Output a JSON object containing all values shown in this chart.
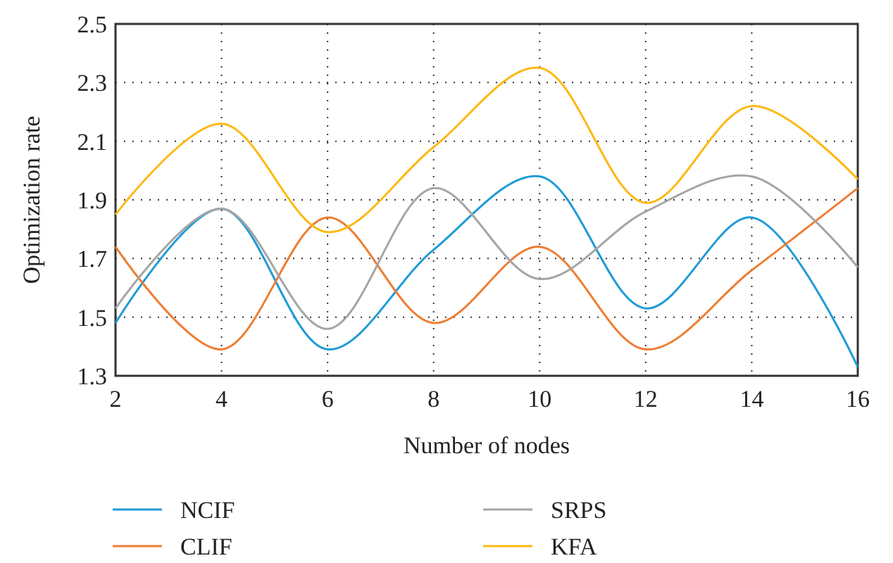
{
  "chart_data": {
    "type": "line",
    "xlabel": "Number of nodes",
    "ylabel": "Optimization rate",
    "x": [
      2,
      4,
      6,
      8,
      10,
      12,
      14,
      16
    ],
    "xlim": [
      2,
      16
    ],
    "xticks": [
      2,
      4,
      6,
      8,
      10,
      12,
      14,
      16
    ],
    "ylim": [
      1.3,
      2.5
    ],
    "yticks": [
      {
        "value": 1.3,
        "label": "1.3"
      },
      {
        "value": 1.5,
        "label": "1.5"
      },
      {
        "value": 1.7,
        "label": "1.7"
      },
      {
        "value": 1.9,
        "label": "1.9"
      },
      {
        "value": 2.1,
        "label": "2.1"
      },
      {
        "value": 2.3,
        "label": "2.3"
      },
      {
        "value": 2.5,
        "label": "2.5"
      }
    ],
    "grid": true,
    "legend": "bottom",
    "marker": "none",
    "line_style": "solid",
    "series": [
      {
        "name": "NCIF",
        "color": "#1f9bd7",
        "values": [
          1.48,
          1.87,
          1.39,
          1.73,
          1.98,
          1.53,
          1.84,
          1.33
        ]
      },
      {
        "name": "CLIF",
        "color": "#ee7d31",
        "values": [
          1.74,
          1.39,
          1.84,
          1.48,
          1.74,
          1.39,
          1.66,
          1.94
        ]
      },
      {
        "name": "SRPS",
        "color": "#a5a5a5",
        "values": [
          1.53,
          1.87,
          1.46,
          1.94,
          1.63,
          1.86,
          1.98,
          1.67
        ]
      },
      {
        "name": "KFA",
        "color": "#fdb913",
        "values": [
          1.85,
          2.16,
          1.79,
          2.08,
          2.35,
          1.89,
          2.22,
          1.97
        ]
      }
    ]
  }
}
